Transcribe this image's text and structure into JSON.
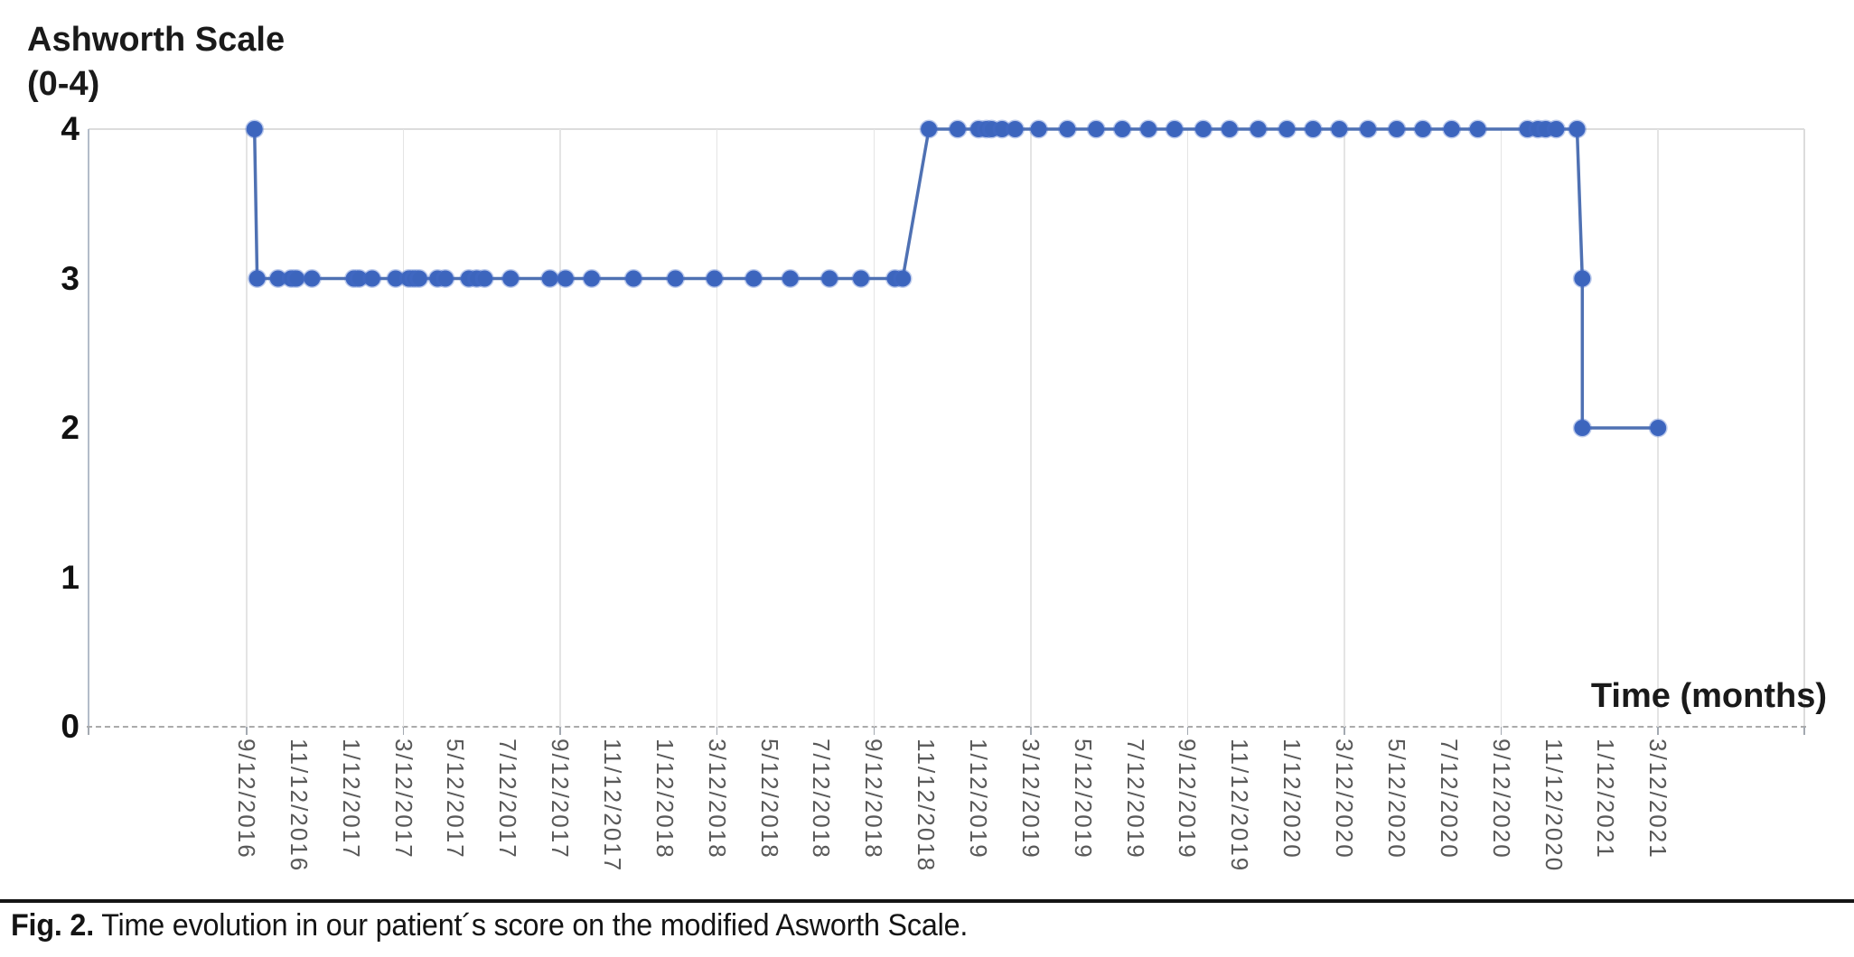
{
  "figure": {
    "y_axis_title": "Ashworth Scale\n(0-4)",
    "x_axis_title": "Time (months)",
    "caption_label": "Fig. 2.",
    "caption_text": " Time evolution in our patient´s score on the modified Asworth Scale."
  },
  "chart_data": {
    "type": "line",
    "title": "",
    "ylabel": "Ashworth Scale (0-4)",
    "xlabel": "Time (months)",
    "ylim": [
      0,
      4
    ],
    "y_ticks": [
      4,
      3,
      2,
      1,
      0
    ],
    "grid": "vertical gridlines every 6 months; dashed baseline at y=0",
    "legend": "none",
    "x_tick_interval_months": 2,
    "x_tick_labels": [
      "9/12/2016",
      "11/12/2016",
      "1/12/2017",
      "3/12/2017",
      "5/12/2017",
      "7/12/2017",
      "9/12/2017",
      "11/12/2017",
      "1/12/2018",
      "3/12/2018",
      "5/12/2018",
      "7/12/2018",
      "9/12/2018",
      "11/12/2018",
      "1/12/2019",
      "3/12/2019",
      "5/12/2019",
      "7/12/2019",
      "9/12/2019",
      "11/12/2019",
      "1/12/2020",
      "3/12/2020",
      "5/12/2020",
      "7/12/2020",
      "9/12/2020",
      "11/12/2020",
      "1/12/2021",
      "3/12/2021"
    ],
    "gridline_months": [
      0,
      6,
      12,
      18,
      24,
      30,
      36,
      42,
      48,
      54
    ],
    "x_unit_note": "points given as months after 9/12/2016 (estimated from plot), with Ashworth score value",
    "points": [
      [
        0.3,
        4
      ],
      [
        0.4,
        3
      ],
      [
        1.2,
        3
      ],
      [
        1.7,
        3
      ],
      [
        1.9,
        3
      ],
      [
        2.5,
        3
      ],
      [
        4.1,
        3
      ],
      [
        4.3,
        3
      ],
      [
        4.8,
        3
      ],
      [
        5.7,
        3
      ],
      [
        6.2,
        3
      ],
      [
        6.4,
        3
      ],
      [
        6.6,
        3
      ],
      [
        7.3,
        3
      ],
      [
        7.6,
        3
      ],
      [
        8.5,
        3
      ],
      [
        8.8,
        3
      ],
      [
        9.1,
        3
      ],
      [
        10.1,
        3
      ],
      [
        11.6,
        3
      ],
      [
        12.2,
        3
      ],
      [
        13.2,
        3
      ],
      [
        14.8,
        3
      ],
      [
        16.4,
        3
      ],
      [
        17.9,
        3
      ],
      [
        19.4,
        3
      ],
      [
        20.8,
        3
      ],
      [
        22.3,
        3
      ],
      [
        23.5,
        3
      ],
      [
        24.8,
        3
      ],
      [
        25.1,
        3
      ],
      [
        26.1,
        4
      ],
      [
        27.2,
        4
      ],
      [
        28.0,
        4
      ],
      [
        28.3,
        4
      ],
      [
        28.5,
        4
      ],
      [
        28.9,
        4
      ],
      [
        29.4,
        4
      ],
      [
        30.3,
        4
      ],
      [
        31.4,
        4
      ],
      [
        32.5,
        4
      ],
      [
        33.5,
        4
      ],
      [
        34.5,
        4
      ],
      [
        35.5,
        4
      ],
      [
        36.6,
        4
      ],
      [
        37.6,
        4
      ],
      [
        38.7,
        4
      ],
      [
        39.8,
        4
      ],
      [
        40.8,
        4
      ],
      [
        41.8,
        4
      ],
      [
        42.9,
        4
      ],
      [
        44.0,
        4
      ],
      [
        45.0,
        4
      ],
      [
        46.1,
        4
      ],
      [
        47.1,
        4
      ],
      [
        49.0,
        4
      ],
      [
        49.4,
        4
      ],
      [
        49.7,
        4
      ],
      [
        50.1,
        4
      ],
      [
        50.9,
        4
      ],
      [
        51.1,
        3
      ],
      [
        51.1,
        2
      ],
      [
        54.0,
        2
      ]
    ],
    "colors": {
      "marker": "#3c65bd",
      "marker_halo": "rgba(70,110,200,0.35)",
      "line": "#4f71b3",
      "gridline": "#e4e4e4",
      "x_tick_label": "#595959",
      "axis": "#b3bcc9",
      "text": "#111111"
    }
  }
}
